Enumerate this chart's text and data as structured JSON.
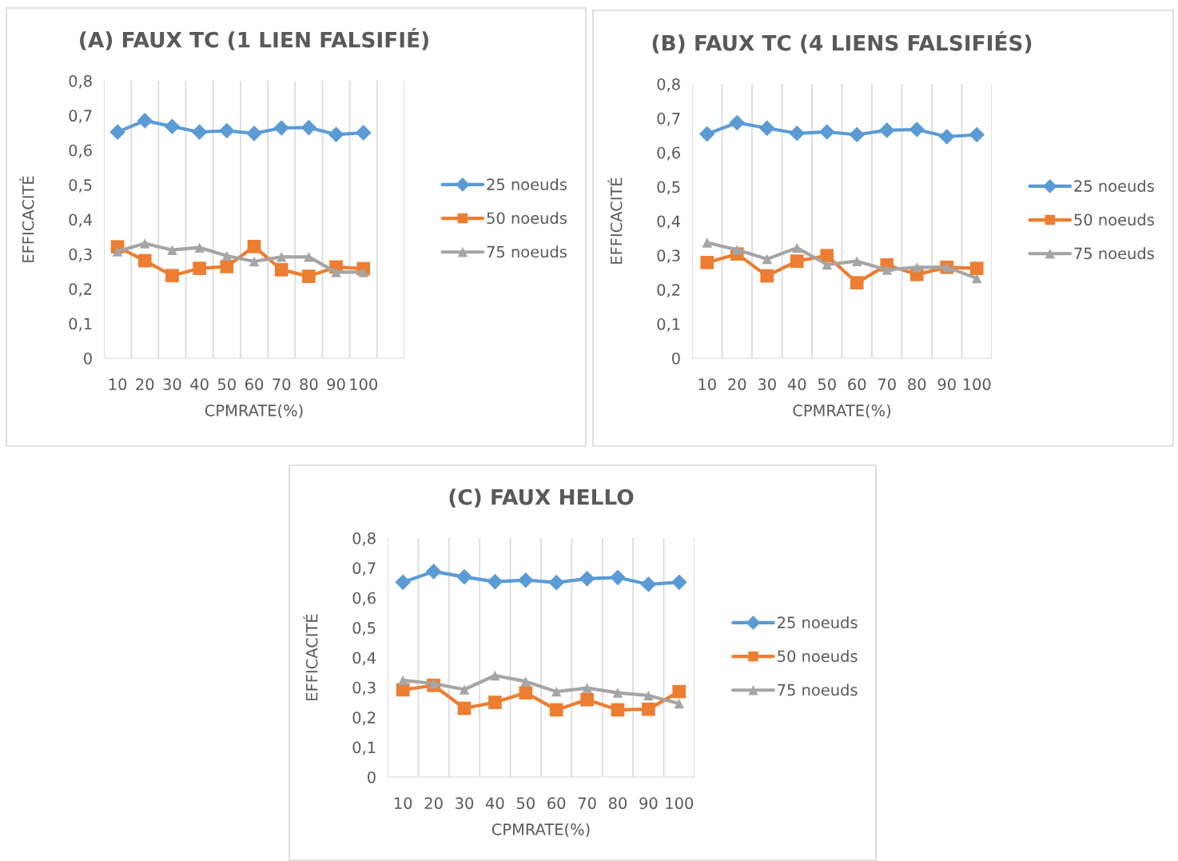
{
  "chart_data": [
    {
      "type": "line",
      "title": "(A) FAUX TC (1 LIEN FALSIFIÉ)",
      "xlabel": "CPMRATE(%)",
      "ylabel": "EFFICACITÉ",
      "categories": [
        "10",
        "20",
        "30",
        "40",
        "50",
        "60",
        "70",
        "80",
        "90",
        "100",
        null
      ],
      "ylim": [
        0,
        0.8
      ],
      "yticks": [
        0,
        {
          "value": 0.1,
          "label": "0,1"
        },
        {
          "value": 0.2,
          "label": "0,2"
        },
        {
          "value": 0.3,
          "label": "0,3"
        },
        {
          "value": 0.4,
          "label": "0,4"
        },
        {
          "value": 0.5,
          "label": "0,5"
        },
        {
          "value": 0.6,
          "label": "0,6"
        },
        {
          "value": 0.7,
          "label": "0,7"
        },
        {
          "value": 0.8,
          "label": "0,8"
        }
      ],
      "grid": "x",
      "legend": "right",
      "series": [
        {
          "name": "25 noeuds",
          "color": "#5b9bd5",
          "marker": "diamond",
          "values": [
            0.652,
            0.685,
            0.668,
            0.652,
            0.656,
            0.648,
            0.664,
            0.665,
            0.645,
            0.65,
            null
          ]
        },
        {
          "name": "50 noeuds",
          "color": "#ed7d31",
          "marker": "square",
          "values": [
            0.321,
            0.281,
            0.238,
            0.259,
            0.264,
            0.322,
            0.255,
            0.236,
            0.263,
            0.258,
            null
          ]
        },
        {
          "name": "75 noeuds",
          "color": "#a5a5a5",
          "marker": "triangle",
          "values": [
            0.308,
            0.331,
            0.312,
            0.319,
            0.295,
            0.279,
            0.292,
            0.292,
            0.248,
            0.248,
            null
          ]
        }
      ]
    },
    {
      "type": "line",
      "title": "(B) FAUX TC (4 LIENS FALSIFIÉS)",
      "xlabel": "CPMRATE(%)",
      "ylabel": "EFFICACITÉ",
      "categories": [
        "10",
        "20",
        "30",
        "40",
        "50",
        "60",
        "70",
        "80",
        "90",
        "100"
      ],
      "ylim": [
        0,
        0.8
      ],
      "yticks": [
        0,
        {
          "value": 0.1,
          "label": "0,1"
        },
        {
          "value": 0.2,
          "label": "0,2"
        },
        {
          "value": 0.3,
          "label": "0,3"
        },
        {
          "value": 0.4,
          "label": "0,4"
        },
        {
          "value": 0.5,
          "label": "0,5"
        },
        {
          "value": 0.6,
          "label": "0,6"
        },
        {
          "value": 0.7,
          "label": "0,7"
        },
        {
          "value": 0.8,
          "label": "0,8"
        }
      ],
      "grid": "x",
      "legend": "right",
      "series": [
        {
          "name": "25 noeuds",
          "color": "#5b9bd5",
          "marker": "diamond",
          "values": [
            0.654,
            0.687,
            0.671,
            0.656,
            0.66,
            0.652,
            0.665,
            0.667,
            0.646,
            0.652
          ]
        },
        {
          "name": "50 noeuds",
          "color": "#ed7d31",
          "marker": "square",
          "values": [
            0.279,
            0.304,
            0.24,
            0.283,
            0.299,
            0.22,
            0.272,
            0.244,
            0.265,
            0.262
          ]
        },
        {
          "name": "75 noeuds",
          "color": "#a5a5a5",
          "marker": "triangle",
          "values": [
            0.337,
            0.316,
            0.289,
            0.322,
            0.273,
            0.283,
            0.258,
            0.265,
            0.265,
            0.233
          ]
        }
      ]
    },
    {
      "type": "line",
      "title": "(C) FAUX HELLO",
      "xlabel": "CPMRATE(%)",
      "ylabel": "EFFICACITÉ",
      "categories": [
        "10",
        "20",
        "30",
        "40",
        "50",
        "60",
        "70",
        "80",
        "90",
        "100"
      ],
      "ylim": [
        0,
        0.8
      ],
      "yticks": [
        0,
        {
          "value": 0.1,
          "label": "0,1"
        },
        {
          "value": 0.2,
          "label": "0,2"
        },
        {
          "value": 0.3,
          "label": "0,3"
        },
        {
          "value": 0.4,
          "label": "0,4"
        },
        {
          "value": 0.5,
          "label": "0,5"
        },
        {
          "value": 0.6,
          "label": "0,6"
        },
        {
          "value": 0.7,
          "label": "0,7"
        },
        {
          "value": 0.8,
          "label": "0,8"
        }
      ],
      "grid": "x",
      "legend": "right",
      "series": [
        {
          "name": "25 noeuds",
          "color": "#5b9bd5",
          "marker": "diamond",
          "values": [
            0.652,
            0.688,
            0.67,
            0.654,
            0.659,
            0.651,
            0.664,
            0.668,
            0.645,
            0.652
          ]
        },
        {
          "name": "50 noeuds",
          "color": "#ed7d31",
          "marker": "square",
          "values": [
            0.292,
            0.307,
            0.23,
            0.25,
            0.282,
            0.225,
            0.259,
            0.225,
            0.227,
            0.286
          ]
        },
        {
          "name": "75 noeuds",
          "color": "#a5a5a5",
          "marker": "triangle",
          "values": [
            0.324,
            0.313,
            0.293,
            0.34,
            0.32,
            0.286,
            0.298,
            0.282,
            0.273,
            0.246
          ]
        }
      ]
    }
  ]
}
